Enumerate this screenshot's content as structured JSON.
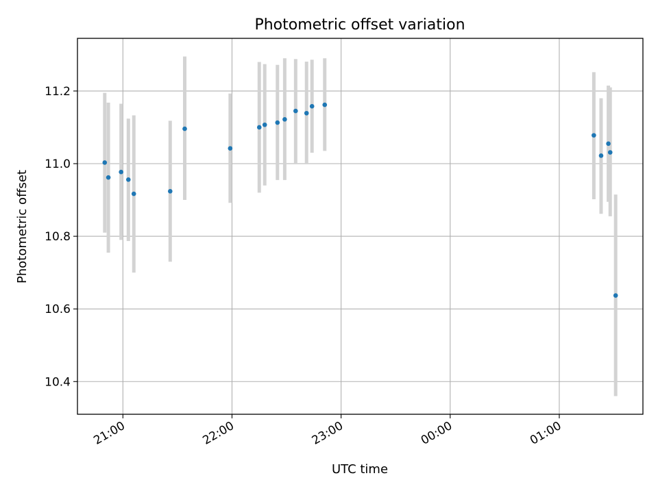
{
  "chart_data": {
    "type": "scatter",
    "title": "Photometric offset variation",
    "xlabel": "UTC time",
    "ylabel": "Photometric offset",
    "x_unit": "UTC time (HH:MM)",
    "xlim": [
      "20:35",
      "01:46"
    ],
    "ylim": [
      10.31,
      11.345
    ],
    "x_ticks": [
      "21:00",
      "22:00",
      "23:00",
      "00:00",
      "01:00"
    ],
    "y_ticks": [
      "10.4",
      "10.6",
      "10.8",
      "11.0",
      "11.2"
    ],
    "grid": true,
    "legend": "none",
    "colors": {
      "point": "#1f77b4",
      "errorbar": "#d3d3d3",
      "grid": "#b0b0b0"
    },
    "points": [
      {
        "x": "20:50",
        "y": 11.003,
        "ylow": 10.81,
        "yhigh": 11.195
      },
      {
        "x": "20:52",
        "y": 10.962,
        "ylow": 10.755,
        "yhigh": 11.168
      },
      {
        "x": "20:59",
        "y": 10.977,
        "ylow": 10.79,
        "yhigh": 11.165
      },
      {
        "x": "21:03",
        "y": 10.956,
        "ylow": 10.787,
        "yhigh": 11.124
      },
      {
        "x": "21:06",
        "y": 10.917,
        "ylow": 10.7,
        "yhigh": 11.133
      },
      {
        "x": "21:26",
        "y": 10.924,
        "ylow": 10.73,
        "yhigh": 11.118
      },
      {
        "x": "21:34",
        "y": 11.096,
        "ylow": 10.9,
        "yhigh": 11.295
      },
      {
        "x": "21:59",
        "y": 11.042,
        "ylow": 10.892,
        "yhigh": 11.193
      },
      {
        "x": "22:15",
        "y": 11.1,
        "ylow": 10.92,
        "yhigh": 11.28
      },
      {
        "x": "22:18",
        "y": 11.107,
        "ylow": 10.94,
        "yhigh": 11.274
      },
      {
        "x": "22:25",
        "y": 11.113,
        "ylow": 10.955,
        "yhigh": 11.272
      },
      {
        "x": "22:29",
        "y": 11.122,
        "ylow": 10.955,
        "yhigh": 11.29
      },
      {
        "x": "22:35",
        "y": 11.145,
        "ylow": 11.0,
        "yhigh": 11.288
      },
      {
        "x": "22:41",
        "y": 11.139,
        "ylow": 11.0,
        "yhigh": 11.281
      },
      {
        "x": "22:44",
        "y": 11.158,
        "ylow": 11.03,
        "yhigh": 11.286
      },
      {
        "x": "22:51",
        "y": 11.162,
        "ylow": 11.035,
        "yhigh": 11.29
      },
      {
        "x": "01:19",
        "y": 11.078,
        "ylow": 10.902,
        "yhigh": 11.252
      },
      {
        "x": "01:23",
        "y": 11.022,
        "ylow": 10.862,
        "yhigh": 11.18
      },
      {
        "x": "01:27",
        "y": 11.055,
        "ylow": 10.895,
        "yhigh": 11.215
      },
      {
        "x": "01:28",
        "y": 11.031,
        "ylow": 10.855,
        "yhigh": 11.21
      },
      {
        "x": "01:31",
        "y": 10.637,
        "ylow": 10.36,
        "yhigh": 10.915
      }
    ]
  }
}
